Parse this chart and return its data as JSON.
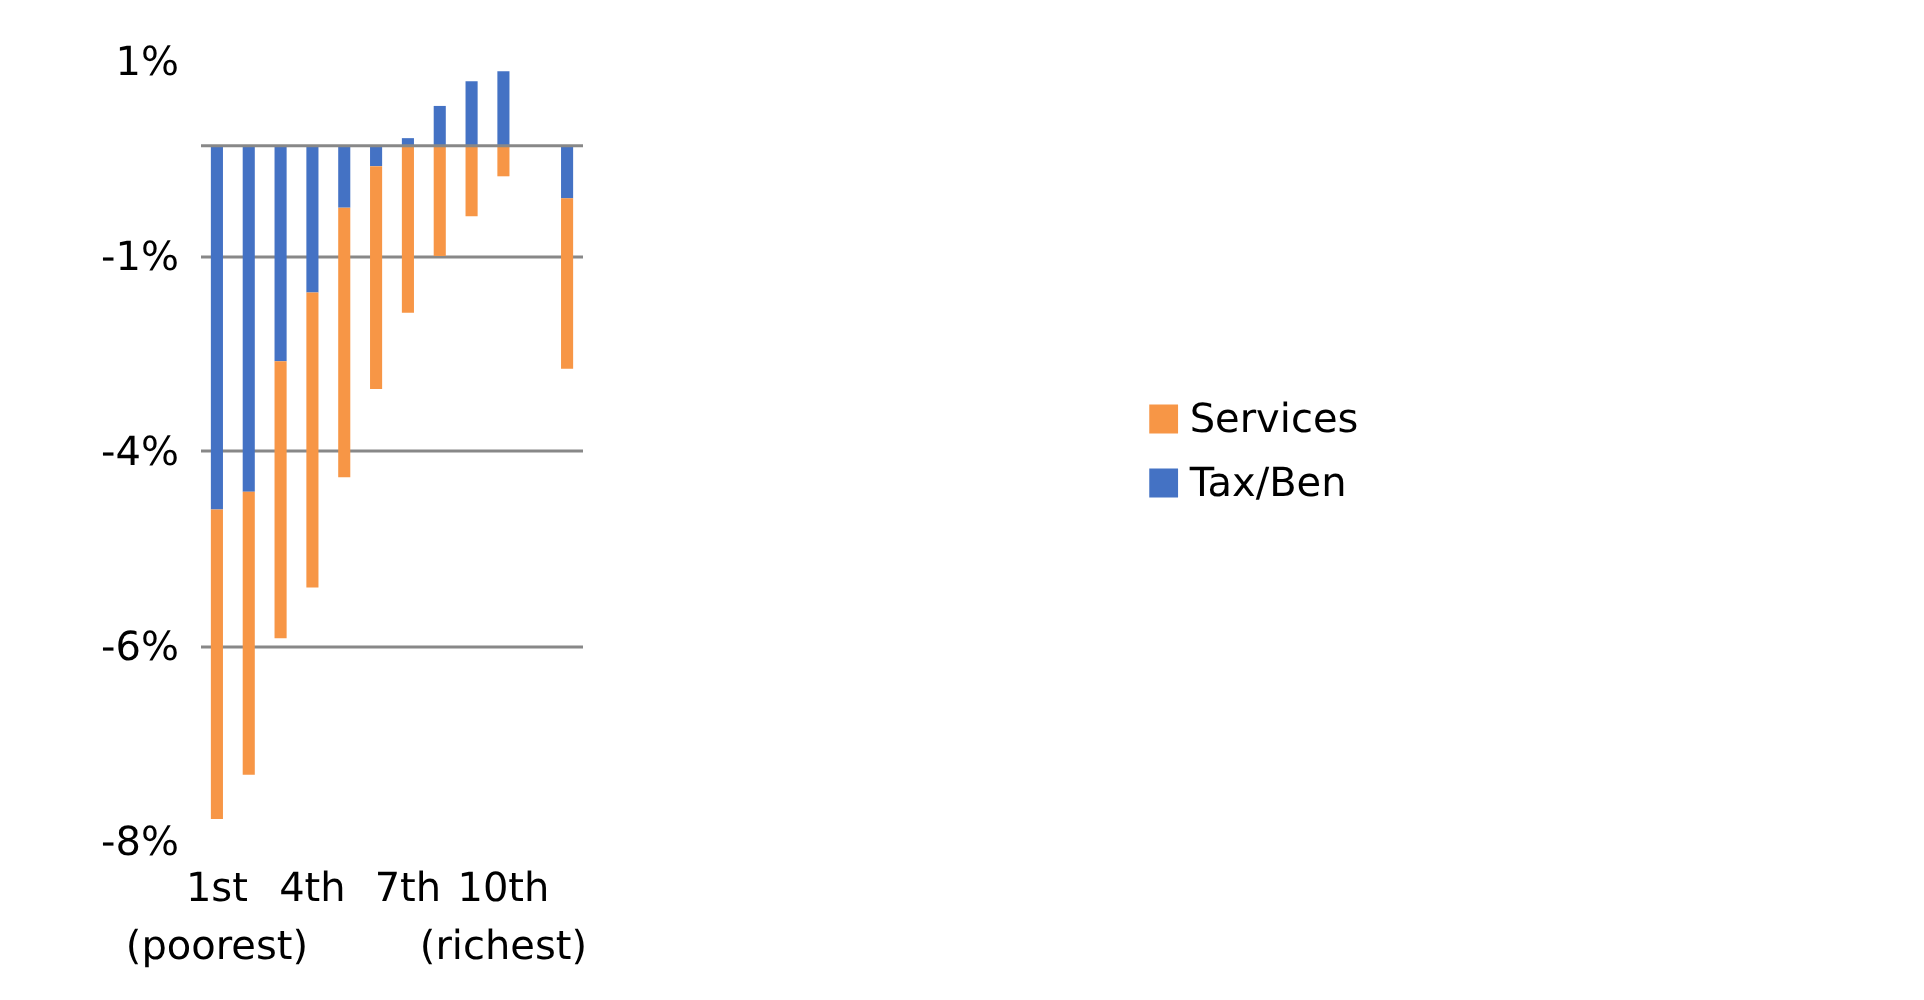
{
  "chart_data": {
    "type": "bar",
    "stacked": true,
    "categories": [
      "1st\n(poorest)",
      null,
      null,
      "4th",
      null,
      null,
      "7th",
      null,
      null,
      "10th\n(richest)",
      null,
      null
    ],
    "series": [
      {
        "name": "Tax/Ben",
        "color": "#4472c4",
        "values": [
          -4.29,
          -4.08,
          -2.54,
          -1.73,
          -0.73,
          -0.24,
          0.09,
          0.47,
          0.76,
          0.88,
          null,
          -0.62
        ]
      },
      {
        "name": "Services",
        "color": "#f79646",
        "values": [
          -3.65,
          -3.34,
          -3.27,
          -3.48,
          -3.18,
          -2.63,
          -1.97,
          -1.3,
          -0.83,
          -0.36,
          null,
          -2.01
        ]
      }
    ],
    "ylim": [
      -8.2,
      1.0
    ],
    "yticks": [
      {
        "value": 1.0,
        "label": "1%"
      },
      {
        "value": -1.3,
        "label": "-1%"
      },
      {
        "value": -3.6,
        "label": "-4%"
      },
      {
        "value": -5.9,
        "label": "-6%"
      },
      {
        "value": -8.2,
        "label": "-8%"
      }
    ],
    "grid": "y",
    "legend": "right"
  }
}
